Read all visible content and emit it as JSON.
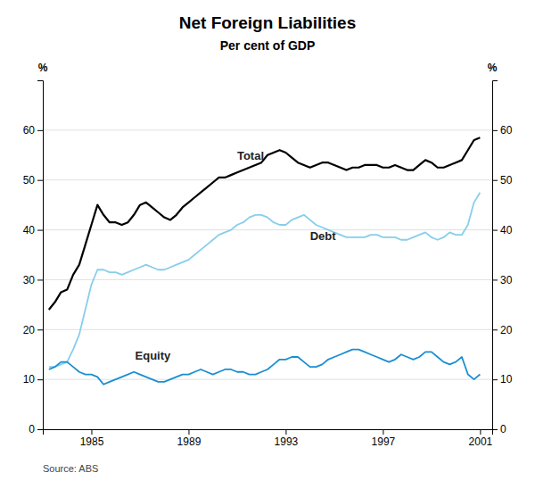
{
  "chart_data": {
    "type": "line",
    "title": "Net Foreign Liabilities",
    "subtitle": "Per cent of GDP",
    "source": "Source: ABS",
    "y_label": "%",
    "y2_label": "%",
    "xlim": [
      1983.0,
      2001.5
    ],
    "xticks": [
      1985,
      1989,
      1993,
      1997,
      2001
    ],
    "ylim": [
      0,
      70
    ],
    "yticks": [
      0,
      10,
      20,
      30,
      40,
      50,
      60
    ],
    "y2lim": [
      0,
      70
    ],
    "y2ticks": [
      0,
      10,
      20,
      30,
      40,
      50,
      60
    ],
    "grid": true,
    "x": [
      1983.25,
      1983.5,
      1983.75,
      1984.0,
      1984.25,
      1984.5,
      1984.75,
      1985.0,
      1985.25,
      1985.5,
      1985.75,
      1986.0,
      1986.25,
      1986.5,
      1986.75,
      1987.0,
      1987.25,
      1987.5,
      1987.75,
      1988.0,
      1988.25,
      1988.5,
      1988.75,
      1989.0,
      1989.25,
      1989.5,
      1989.75,
      1990.0,
      1990.25,
      1990.5,
      1990.75,
      1991.0,
      1991.25,
      1991.5,
      1991.75,
      1992.0,
      1992.25,
      1992.5,
      1992.75,
      1993.0,
      1993.25,
      1993.5,
      1993.75,
      1994.0,
      1994.25,
      1994.5,
      1994.75,
      1995.0,
      1995.25,
      1995.5,
      1995.75,
      1996.0,
      1996.25,
      1996.5,
      1996.75,
      1997.0,
      1997.25,
      1997.5,
      1997.75,
      1998.0,
      1998.25,
      1998.5,
      1998.75,
      1999.0,
      1999.25,
      1999.5,
      1999.75,
      2000.0,
      2000.25,
      2000.5,
      2000.75,
      2001.0
    ],
    "series": [
      {
        "name": "Total",
        "color": "#000000",
        "label_x": 1991.0,
        "label_y": 53.5,
        "values": [
          24.0,
          25.5,
          27.5,
          28.0,
          31.0,
          33.0,
          37.0,
          41.0,
          45.0,
          43.0,
          41.5,
          41.5,
          41.0,
          41.5,
          43.0,
          45.0,
          45.5,
          44.5,
          43.5,
          42.5,
          42.0,
          43.0,
          44.5,
          45.5,
          46.5,
          47.5,
          48.5,
          49.5,
          50.5,
          50.5,
          51.0,
          51.5,
          52.0,
          52.5,
          53.0,
          53.5,
          55.0,
          55.5,
          56.0,
          55.5,
          54.5,
          53.5,
          53.0,
          52.5,
          53.0,
          53.5,
          53.5,
          53.0,
          52.5,
          52.0,
          52.5,
          52.5,
          53.0,
          53.0,
          53.0,
          52.5,
          52.5,
          53.0,
          52.5,
          52.0,
          52.0,
          53.0,
          54.0,
          53.5,
          52.5,
          52.5,
          53.0,
          53.5,
          54.0,
          56.0,
          58.0,
          58.5
        ]
      },
      {
        "name": "Debt",
        "color": "#87ceeb",
        "label_x": 1994.0,
        "label_y": 37.5,
        "values": [
          12.5,
          12.5,
          13.0,
          13.5,
          16.0,
          19.0,
          24.0,
          29.0,
          32.0,
          32.0,
          31.5,
          31.5,
          31.0,
          31.5,
          32.0,
          32.5,
          33.0,
          32.5,
          32.0,
          32.0,
          32.5,
          33.0,
          33.5,
          34.0,
          35.0,
          36.0,
          37.0,
          38.0,
          39.0,
          39.5,
          40.0,
          41.0,
          41.5,
          42.5,
          43.0,
          43.0,
          42.5,
          41.5,
          41.0,
          41.0,
          42.0,
          42.5,
          43.0,
          42.0,
          41.0,
          40.5,
          40.0,
          39.5,
          39.0,
          38.5,
          38.5,
          38.5,
          38.5,
          39.0,
          39.0,
          38.5,
          38.5,
          38.5,
          38.0,
          38.0,
          38.5,
          39.0,
          39.5,
          38.5,
          38.0,
          38.5,
          39.5,
          39.0,
          39.0,
          41.0,
          45.5,
          47.5
        ]
      },
      {
        "name": "Equity",
        "color": "#1a8fd1",
        "label_x": 1986.8,
        "label_y": 13.5,
        "values": [
          12.0,
          12.5,
          13.5,
          13.5,
          12.5,
          11.5,
          11.0,
          11.0,
          10.5,
          9.0,
          9.5,
          10.0,
          10.5,
          11.0,
          11.5,
          11.0,
          10.5,
          10.0,
          9.5,
          9.5,
          10.0,
          10.5,
          11.0,
          11.0,
          11.5,
          12.0,
          11.5,
          11.0,
          11.5,
          12.0,
          12.0,
          11.5,
          11.5,
          11.0,
          11.0,
          11.5,
          12.0,
          13.0,
          14.0,
          14.0,
          14.5,
          14.5,
          13.5,
          12.5,
          12.5,
          13.0,
          14.0,
          14.5,
          15.0,
          15.5,
          16.0,
          16.0,
          15.5,
          15.0,
          14.5,
          14.0,
          13.5,
          14.0,
          15.0,
          14.5,
          14.0,
          14.5,
          15.5,
          15.5,
          14.5,
          13.5,
          13.0,
          13.5,
          14.5,
          11.0,
          10.0,
          11.0
        ]
      }
    ]
  }
}
